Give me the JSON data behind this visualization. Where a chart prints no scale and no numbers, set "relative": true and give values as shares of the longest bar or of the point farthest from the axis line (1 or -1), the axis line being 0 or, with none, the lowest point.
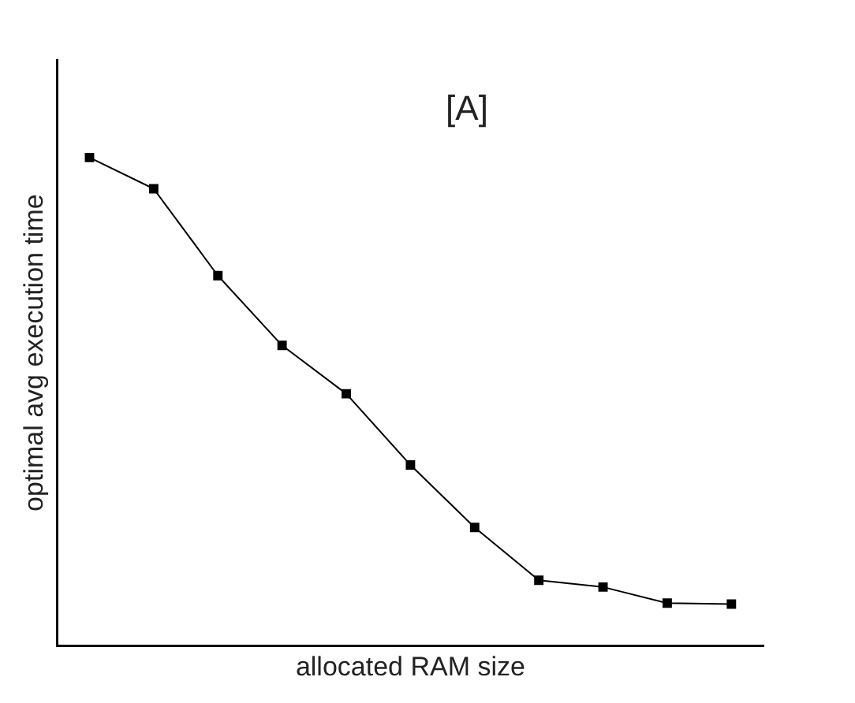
{
  "chart_data": {
    "type": "line",
    "relative": true,
    "xlabel": "allocated RAM size",
    "ylabel": "optimal avg execution time",
    "annotations": [
      "[A]"
    ],
    "categories": [
      null,
      null,
      null,
      null,
      null,
      null,
      null,
      null,
      null,
      null,
      null
    ],
    "series": [
      {
        "color": "#000000",
        "values": [
          1,
          0.936,
          0.758,
          0.615,
          0.516,
          0.37,
          0.242,
          0.134,
          0.12,
          0.087,
          0.085
        ]
      }
    ],
    "marker": "square",
    "line_style": "solid",
    "grid": false,
    "legend": false
  }
}
